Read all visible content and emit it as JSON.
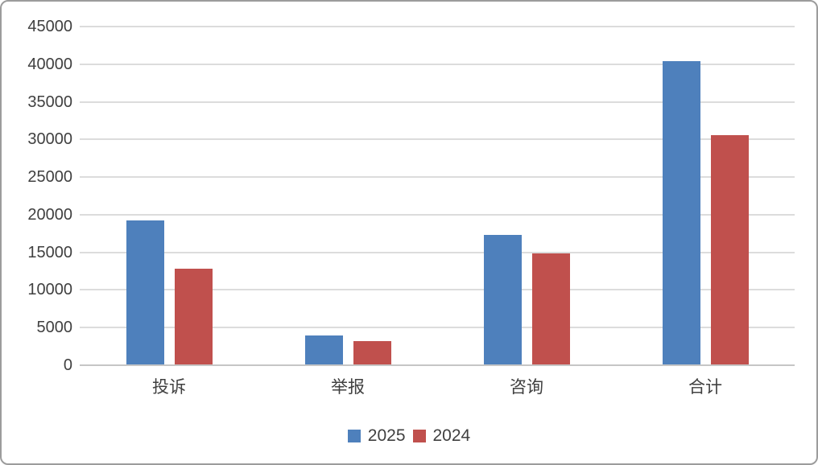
{
  "chart_data": {
    "type": "bar",
    "categories": [
      "投诉",
      "举报",
      "咨询",
      "合计"
    ],
    "series": [
      {
        "name": "2025",
        "color": "#4E80BC",
        "values": [
          19150,
          3900,
          17250,
          40300
        ]
      },
      {
        "name": "2024",
        "color": "#C0504D",
        "values": [
          12750,
          3050,
          14700,
          30500
        ]
      }
    ],
    "title": "",
    "xlabel": "",
    "ylabel": "",
    "ylim": [
      0,
      45000
    ],
    "y_ticks": [
      0,
      5000,
      10000,
      15000,
      20000,
      25000,
      30000,
      35000,
      40000,
      45000
    ],
    "grid": true,
    "legend_position": "bottom",
    "colors": {
      "gridline": "#dcdcdc",
      "axis_line": "#c6c6c6",
      "text": "#404040",
      "frame_border": "#9c9c9c",
      "background": "#ffffff"
    }
  }
}
